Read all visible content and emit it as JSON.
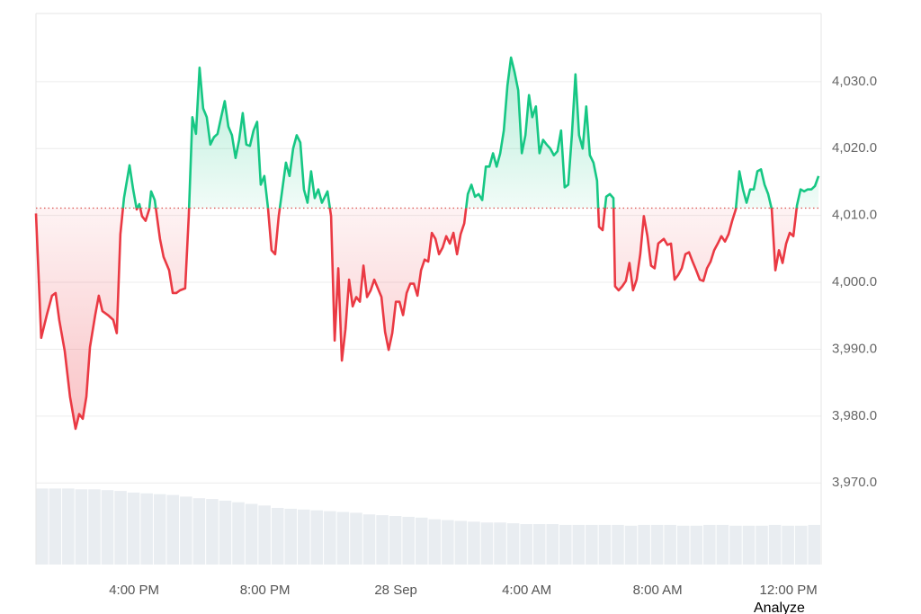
{
  "chart_data": {
    "type": "line",
    "xlim": [
      0,
      24
    ],
    "ylim": [
      3957.8,
      4040.2
    ],
    "grid": true,
    "baseline": 4011.1,
    "line_colors": {
      "up": "#16c784",
      "down": "#ea3943"
    },
    "yticks": [
      {
        "value": 4030,
        "label": "4,030.0"
      },
      {
        "value": 4020,
        "label": "4,020.0"
      },
      {
        "value": 4010,
        "label": "4,010.0"
      },
      {
        "value": 4000,
        "label": "4,000.0"
      },
      {
        "value": 3990,
        "label": "3,990.0"
      },
      {
        "value": 3980,
        "label": "3,980.0"
      },
      {
        "value": 3970,
        "label": "3,970.0"
      }
    ],
    "xticks": [
      {
        "value": 3,
        "label": "4:00 PM"
      },
      {
        "value": 7,
        "label": "8:00 PM"
      },
      {
        "value": 11,
        "label": "28 Sep"
      },
      {
        "value": 15,
        "label": "4:00 AM"
      },
      {
        "value": 19,
        "label": "8:00 AM"
      },
      {
        "value": 23,
        "label": "12:00 PM"
      }
    ],
    "x": [
      0,
      0.16,
      0.33,
      0.49,
      0.6,
      0.71,
      0.88,
      1.04,
      1.21,
      1.32,
      1.43,
      1.54,
      1.65,
      1.81,
      1.92,
      2.03,
      2.2,
      2.36,
      2.47,
      2.58,
      2.69,
      2.86,
      2.97,
      3.08,
      3.16,
      3.24,
      3.35,
      3.46,
      3.52,
      3.63,
      3.79,
      3.9,
      4.07,
      4.18,
      4.29,
      4.4,
      4.56,
      4.67,
      4.78,
      4.89,
      5.0,
      5.11,
      5.22,
      5.33,
      5.44,
      5.55,
      5.66,
      5.77,
      5.88,
      5.99,
      6.1,
      6.21,
      6.32,
      6.43,
      6.54,
      6.65,
      6.76,
      6.87,
      6.98,
      7.09,
      7.2,
      7.31,
      7.42,
      7.53,
      7.64,
      7.75,
      7.86,
      7.97,
      8.08,
      8.19,
      8.3,
      8.41,
      8.52,
      8.63,
      8.74,
      8.91,
      9.02,
      9.13,
      9.24,
      9.35,
      9.46,
      9.57,
      9.68,
      9.79,
      9.9,
      10.01,
      10.12,
      10.23,
      10.34,
      10.45,
      10.56,
      10.67,
      10.78,
      10.89,
      11.0,
      11.11,
      11.22,
      11.33,
      11.44,
      11.55,
      11.66,
      11.77,
      11.88,
      11.99,
      12.1,
      12.21,
      12.32,
      12.43,
      12.54,
      12.65,
      12.76,
      12.87,
      12.98,
      13.09,
      13.2,
      13.31,
      13.42,
      13.53,
      13.64,
      13.75,
      13.86,
      13.97,
      14.08,
      14.19,
      14.3,
      14.41,
      14.52,
      14.63,
      14.74,
      14.85,
      14.96,
      15.07,
      15.17,
      15.28,
      15.39,
      15.5,
      15.61,
      15.72,
      15.83,
      15.94,
      16.05,
      16.16,
      16.27,
      16.38,
      16.49,
      16.6,
      16.71,
      16.82,
      16.93,
      17.04,
      17.15,
      17.21,
      17.32,
      17.43,
      17.54,
      17.65,
      17.7,
      17.81,
      17.92,
      18.03,
      18.14,
      18.25,
      18.36,
      18.47,
      18.58,
      18.69,
      18.8,
      18.91,
      19.02,
      19.19,
      19.3,
      19.41,
      19.52,
      19.63,
      19.74,
      19.85,
      19.96,
      20.07,
      20.18,
      20.29,
      20.4,
      20.51,
      20.62,
      20.73,
      20.84,
      20.95,
      21.06,
      21.17,
      21.28,
      21.39,
      21.5,
      21.61,
      21.72,
      21.83,
      21.94,
      22.05,
      22.16,
      22.27,
      22.38,
      22.49,
      22.6,
      22.71,
      22.82,
      22.93,
      23.04,
      23.15,
      23.26,
      23.37,
      23.48,
      23.59,
      23.7,
      23.81,
      23.92
    ],
    "values": [
      4010.3,
      3991.7,
      3995.1,
      3998.0,
      3998.4,
      3994.4,
      3989.7,
      3982.9,
      3978.1,
      3980.3,
      3979.6,
      3982.9,
      3990.3,
      3995.1,
      3998.0,
      3995.7,
      3995.1,
      3994.4,
      3992.4,
      4007.2,
      4012.6,
      4017.5,
      4013.9,
      4010.9,
      4011.7,
      4009.9,
      4009.2,
      4010.9,
      4013.6,
      4012.3,
      4006.5,
      4003.8,
      4001.8,
      3998.4,
      3998.4,
      3998.8,
      3999.1,
      4009.9,
      4024.7,
      4022.2,
      4032.1,
      4026.0,
      4024.7,
      4020.6,
      4021.7,
      4022.2,
      4024.7,
      4027.1,
      4023.3,
      4022.0,
      4018.6,
      4021.3,
      4025.3,
      4020.6,
      4020.4,
      4022.7,
      4024.0,
      4014.6,
      4015.9,
      4011.2,
      4004.8,
      4004.2,
      4009.9,
      4013.9,
      4017.9,
      4015.9,
      4020.0,
      4022.0,
      4020.9,
      4013.9,
      4011.9,
      4016.6,
      4012.6,
      4013.9,
      4011.9,
      4013.6,
      4009.9,
      3991.3,
      4002.1,
      3988.3,
      3993.0,
      4000.4,
      3996.4,
      3997.8,
      3997.1,
      4002.5,
      3997.8,
      3998.8,
      4000.4,
      3999.1,
      3997.8,
      3992.6,
      3989.9,
      3992.4,
      3997.1,
      3997.1,
      3995.1,
      3998.4,
      3999.8,
      3999.8,
      3998.0,
      4001.8,
      4003.4,
      4003.1,
      4007.4,
      4006.5,
      4004.2,
      4005.2,
      4006.9,
      4005.8,
      4007.4,
      4004.2,
      4007.2,
      4008.8,
      4013.2,
      4014.6,
      4012.8,
      4013.2,
      4012.3,
      4017.3,
      4017.3,
      4019.3,
      4017.3,
      4019.3,
      4022.7,
      4029.4,
      4033.6,
      4031.4,
      4028.7,
      4019.3,
      4022.0,
      4028.0,
      4024.7,
      4026.3,
      4019.3,
      4021.3,
      4020.6,
      4020.0,
      4019.0,
      4019.6,
      4022.7,
      4014.2,
      4014.6,
      4022.0,
      4031.1,
      4022.0,
      4020.0,
      4026.3,
      4019.0,
      4017.9,
      4015.2,
      4008.3,
      4007.8,
      4012.8,
      4013.2,
      4012.6,
      3999.4,
      3998.8,
      3999.4,
      4000.2,
      4002.9,
      3998.8,
      4000.4,
      4004.2,
      4009.9,
      4006.9,
      4002.5,
      4002.1,
      4005.8,
      4006.5,
      4005.6,
      4005.8,
      4000.4,
      4001.1,
      4002.1,
      4004.2,
      4004.5,
      4003.1,
      4001.8,
      4000.4,
      4000.2,
      4002.1,
      4003.1,
      4004.8,
      4005.8,
      4006.9,
      4006.1,
      4007.2,
      4009.2,
      4010.9,
      4016.6,
      4013.9,
      4011.9,
      4013.9,
      4013.9,
      4016.6,
      4016.9,
      4014.6,
      4013.2,
      4010.9,
      4001.8,
      4004.8,
      4002.9,
      4005.8,
      4007.4,
      4006.9,
      4011.5,
      4013.9,
      4013.6,
      4013.9,
      4013.9,
      4014.4,
      4015.9
    ],
    "volume": {
      "color": "#e9edf1",
      "ylim": [
        0,
        100
      ],
      "values": [
        94,
        94,
        94,
        93,
        93,
        92,
        91,
        89,
        88,
        87,
        86,
        84,
        82,
        81,
        79,
        77,
        75,
        73,
        70,
        69,
        68,
        67,
        66,
        65,
        64,
        62,
        61,
        60,
        59,
        58,
        56,
        55,
        54,
        53,
        52,
        52,
        51,
        50,
        50,
        50,
        49,
        49,
        49,
        49,
        49,
        48,
        49,
        49,
        49,
        48,
        48,
        49,
        49,
        48,
        48,
        48,
        49,
        48,
        48,
        49
      ]
    }
  },
  "button": "Analyze"
}
